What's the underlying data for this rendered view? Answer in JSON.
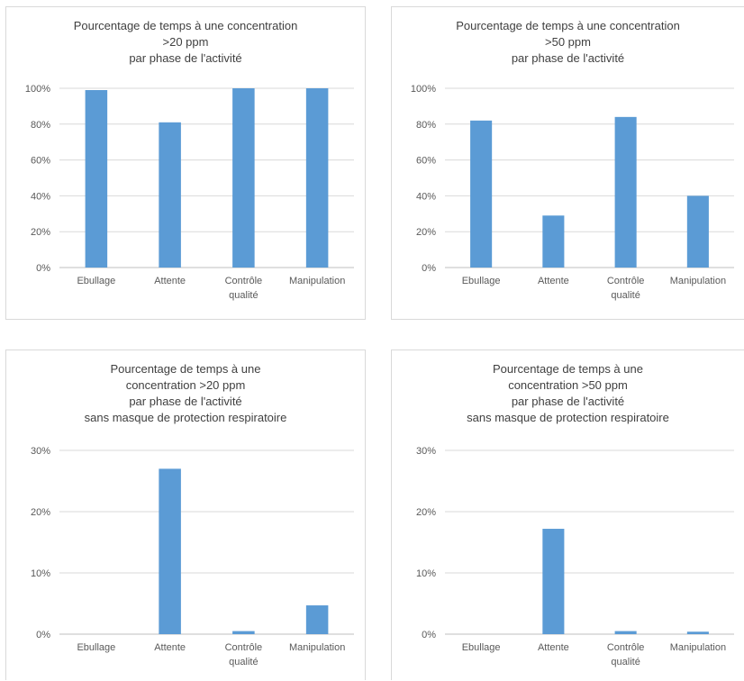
{
  "chart_data": [
    {
      "type": "bar",
      "title": [
        "Pourcentage de temps à une concentration",
        ">20 ppm",
        "par phase de l'activité"
      ],
      "categories": [
        [
          "Ebullage"
        ],
        [
          "Attente"
        ],
        [
          "Contrôle",
          "qualité"
        ],
        [
          "Manipulation"
        ]
      ],
      "values": [
        0.99,
        0.81,
        1.0,
        1.0
      ],
      "ylim": [
        0,
        1
      ],
      "yticks": [
        0,
        0.2,
        0.4,
        0.6,
        0.8,
        1.0
      ],
      "ytick_labels": [
        "0%",
        "20%",
        "40%",
        "60%",
        "80%",
        "100%"
      ],
      "grid": true,
      "color": "#5b9bd5"
    },
    {
      "type": "bar",
      "title": [
        "Pourcentage de temps à une concentration",
        ">50 ppm",
        "par phase de l'activité"
      ],
      "categories": [
        [
          "Ebullage"
        ],
        [
          "Attente"
        ],
        [
          "Contrôle",
          "qualité"
        ],
        [
          "Manipulation"
        ]
      ],
      "values": [
        0.82,
        0.29,
        0.84,
        0.4
      ],
      "ylim": [
        0,
        1
      ],
      "yticks": [
        0,
        0.2,
        0.4,
        0.6,
        0.8,
        1.0
      ],
      "ytick_labels": [
        "0%",
        "20%",
        "40%",
        "60%",
        "80%",
        "100%"
      ],
      "grid": true,
      "color": "#5b9bd5"
    },
    {
      "type": "bar",
      "title": [
        "Pourcentage de temps à une",
        "concentration >20 ppm",
        "par phase de l'activité",
        "sans masque de protection respiratoire"
      ],
      "categories": [
        [
          "Ebullage"
        ],
        [
          "Attente"
        ],
        [
          "Contrôle",
          "qualité"
        ],
        [
          "Manipulation"
        ]
      ],
      "values": [
        0.0,
        0.27,
        0.005,
        0.047
      ],
      "ylim": [
        0,
        0.3
      ],
      "yticks": [
        0,
        0.1,
        0.2,
        0.3
      ],
      "ytick_labels": [
        "0%",
        "10%",
        "20%",
        "30%"
      ],
      "grid": true,
      "color": "#5b9bd5"
    },
    {
      "type": "bar",
      "title": [
        "Pourcentage de temps à une",
        "concentration >50 ppm",
        "par phase de l'activité",
        "sans masque de protection respiratoire"
      ],
      "categories": [
        [
          "Ebullage"
        ],
        [
          "Attente"
        ],
        [
          "Contrôle",
          "qualité"
        ],
        [
          "Manipulation"
        ]
      ],
      "values": [
        0.0,
        0.172,
        0.005,
        0.004
      ],
      "ylim": [
        0,
        0.3
      ],
      "yticks": [
        0,
        0.1,
        0.2,
        0.3
      ],
      "ytick_labels": [
        "0%",
        "10%",
        "20%",
        "30%"
      ],
      "grid": true,
      "color": "#5b9bd5"
    }
  ]
}
